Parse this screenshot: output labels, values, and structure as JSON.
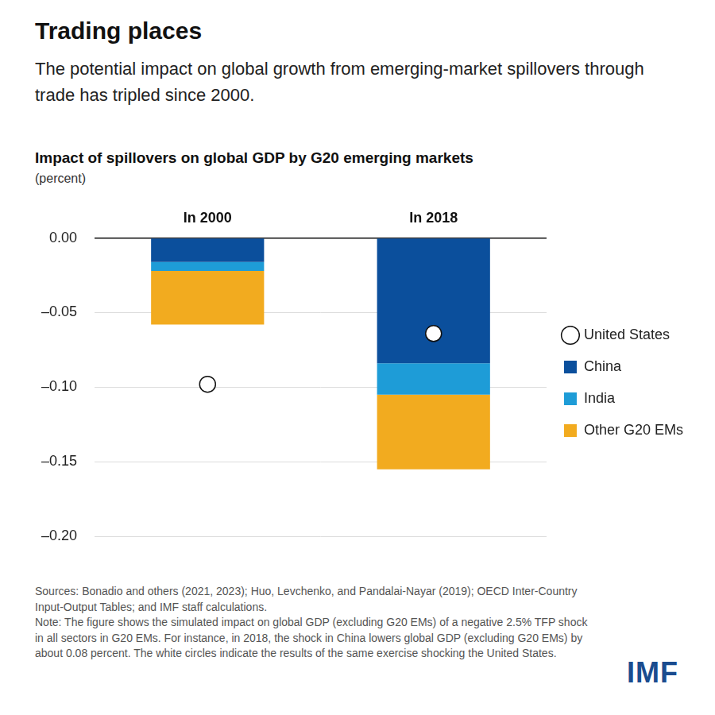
{
  "header": {
    "title": "Trading places",
    "subtitle": "The potential impact on global growth from emerging-market spillovers through trade has tripled since 2000."
  },
  "chart_data": {
    "type": "bar",
    "title": "Impact of spillovers on global GDP by G20 emerging markets",
    "subtitle": "(percent)",
    "categories": [
      "In 2000",
      "In 2018"
    ],
    "series": [
      {
        "name": "China",
        "color": "#0b4f9c",
        "values": [
          -0.016,
          -0.084
        ]
      },
      {
        "name": "India",
        "color": "#1e9cd7",
        "values": [
          -0.006,
          -0.021
        ]
      },
      {
        "name": "Other G20 EMs",
        "color": "#f2ab1f",
        "values": [
          -0.036,
          -0.05
        ]
      },
      {
        "name": "United States",
        "type": "scatter",
        "marker": "circle",
        "color": "#ffffff",
        "values": [
          -0.098,
          -0.064
        ]
      }
    ],
    "stacked": true,
    "ylim": [
      -0.2,
      0
    ],
    "yticks": [
      {
        "value": 0,
        "label": "0.00"
      },
      {
        "value": -0.05,
        "label": "–0.05"
      },
      {
        "value": -0.1,
        "label": "–0.10"
      },
      {
        "value": -0.15,
        "label": "–0.15"
      },
      {
        "value": -0.2,
        "label": "–0.20"
      }
    ],
    "grid": true,
    "legend": "right"
  },
  "footer": {
    "sources": "Sources: Bonadio and others (2021, 2023); Huo, Levchenko, and Pandalai-Nayar (2019); OECD Inter-Country Input-Output Tables; and IMF staff calculations.",
    "note": "Note: The figure shows the simulated impact on global GDP (excluding G20 EMs) of a negative 2.5% TFP shock in all sectors in G20 EMs. For instance, in 2018, the shock in China lowers global GDP (excluding G20 EMs) by about 0.08 percent. The white circles indicate the results of the same exercise shocking the United States.",
    "logo": "IMF"
  }
}
